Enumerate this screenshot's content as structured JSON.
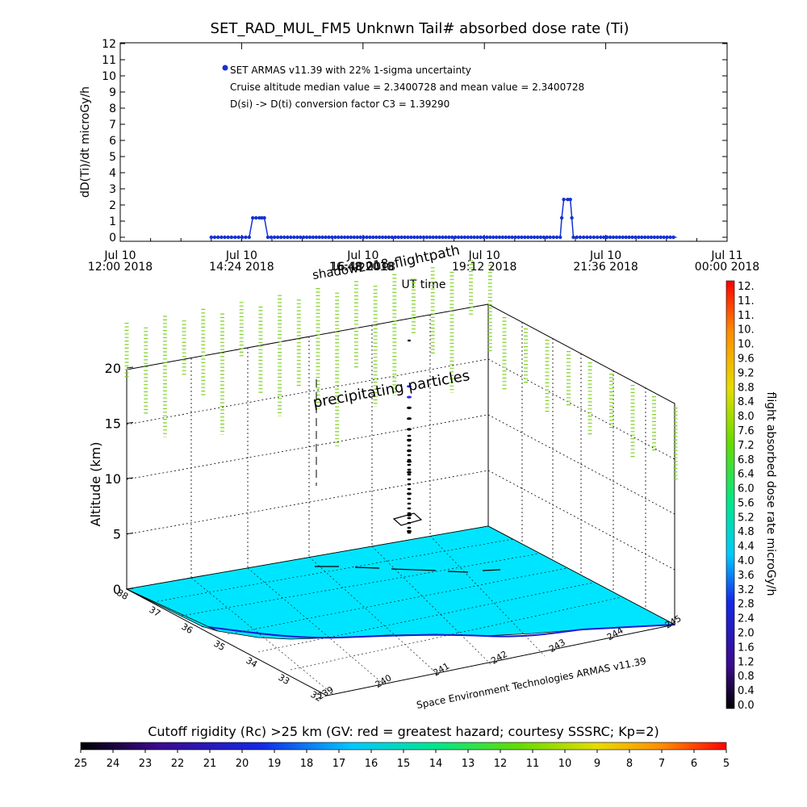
{
  "chart_data": [
    {
      "type": "line",
      "title": "SET_RAD_MUL_FM5 Unknwn Tail#  absorbed dose rate (Ti)",
      "xlabel": "UT time",
      "ylabel": "dD(Ti)/dt microGy/h",
      "ylim": [
        0,
        12
      ],
      "xlim_hours": [
        12.0,
        24.0
      ],
      "x_ticks": [
        {
          "line1": "Jul 10",
          "line2": "12:00 2018"
        },
        {
          "line1": "Jul 10",
          "line2": "14:24 2018"
        },
        {
          "line1": "Jul 10",
          "line2": "16:48 2018"
        },
        {
          "line1": "Jul 10",
          "line2": "19:12 2018"
        },
        {
          "line1": "Jul 10",
          "line2": "21:36 2018"
        },
        {
          "line1": "Jul 11",
          "line2": "00:00 2018"
        }
      ],
      "y_ticks": [
        "0",
        "1",
        "2",
        "3",
        "4",
        "5",
        "6",
        "7",
        "8",
        "9",
        "10",
        "11",
        "12"
      ],
      "annotations": [
        "SET ARMAS v11.39 with 22% 1-sigma uncertainty",
        "Cruise altitude median value = 2.3400728 and mean value = 2.3400728",
        "D(si) -> D(ti) conversion factor C3 = 1.39290"
      ],
      "legend_marker_value": 10.5,
      "series": [
        {
          "color": "#1432d2",
          "points": [
            {
              "hour": 13.8,
              "value": 0.0
            },
            {
              "hour": 14.2,
              "value": 0.0
            },
            {
              "hour": 14.55,
              "value": 0.0
            },
            {
              "hour": 14.62,
              "value": 1.2
            },
            {
              "hour": 14.75,
              "value": 1.2
            },
            {
              "hour": 14.85,
              "value": 1.2
            },
            {
              "hour": 14.92,
              "value": 0.0
            },
            {
              "hour": 15.5,
              "value": 0.0
            },
            {
              "hour": 16.5,
              "value": 0.0
            },
            {
              "hour": 17.5,
              "value": 0.0
            },
            {
              "hour": 18.5,
              "value": 0.0
            },
            {
              "hour": 19.5,
              "value": 0.0
            },
            {
              "hour": 20.5,
              "value": 0.0
            },
            {
              "hour": 20.7,
              "value": 0.0
            },
            {
              "hour": 20.73,
              "value": 1.2
            },
            {
              "hour": 20.77,
              "value": 2.34
            },
            {
              "hour": 20.85,
              "value": 2.34
            },
            {
              "hour": 20.9,
              "value": 2.34
            },
            {
              "hour": 20.93,
              "value": 1.2
            },
            {
              "hour": 20.96,
              "value": 0.0
            },
            {
              "hour": 21.5,
              "value": 0.0
            },
            {
              "hour": 22.5,
              "value": 0.0
            },
            {
              "hour": 23.0,
              "value": 0.0
            }
          ]
        }
      ]
    },
    {
      "type": "scatter",
      "subtype": "3d-flightpath",
      "zlabel": "Altitude (km)",
      "z_ticks": [
        "0",
        "5",
        "10",
        "15",
        "20"
      ],
      "lat_ticks": [
        "38",
        "37",
        "36",
        "35",
        "34",
        "33",
        "32"
      ],
      "lon_ticks": [
        "239",
        "240",
        "241",
        "242",
        "243",
        "244",
        "245"
      ],
      "labels": [
        "shadow2018",
        "flightpath",
        "precipitating particles",
        "Space Environment Technologies ARMAS v11.39"
      ],
      "title_overlap": "16:48 2018",
      "color_bar": {
        "label": "flight absorbed dose rate microGy/h",
        "ticks": [
          "12.",
          "11.",
          "11.",
          "10.",
          "10.",
          "9.6",
          "9.2",
          "8.8",
          "8.4",
          "8.0",
          "7.6",
          "7.2",
          "6.8",
          "6.4",
          "6.0",
          "5.6",
          "5.2",
          "4.8",
          "4.4",
          "4.0",
          "3.6",
          "3.2",
          "2.8",
          "2.4",
          "2.0",
          "1.6",
          "1.2",
          "0.8",
          "0.4",
          "0.0"
        ]
      },
      "surface_color": "#00e5ff",
      "precip_color": "#7ed321",
      "flightpath_altitudes_km": [
        0.5,
        2,
        4,
        6,
        7,
        8,
        9,
        10,
        11,
        12,
        13,
        14
      ]
    }
  ],
  "cutoff_bar": {
    "title": "Cutoff rigidity (Rc) >25 km (GV: red = greatest hazard; courtesy SSSRC; Kp=2)",
    "ticks": [
      "25",
      "24",
      "23",
      "22",
      "21",
      "20",
      "19",
      "18",
      "17",
      "16",
      "15",
      "14",
      "13",
      "12",
      "11",
      "10",
      "9",
      "8",
      "7",
      "6",
      "5"
    ]
  }
}
